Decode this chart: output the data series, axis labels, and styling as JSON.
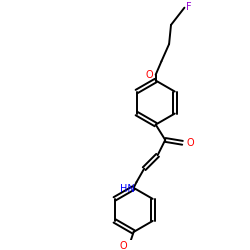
{
  "background_color": "#ffffff",
  "atom_colors": {
    "F": "#9400d3",
    "O": "#ff0000",
    "N": "#0000ff",
    "C": "#000000",
    "H": "#000000"
  },
  "bond_color": "#000000",
  "line_width": 1.4,
  "figsize": [
    2.5,
    2.5
  ],
  "dpi": 100
}
